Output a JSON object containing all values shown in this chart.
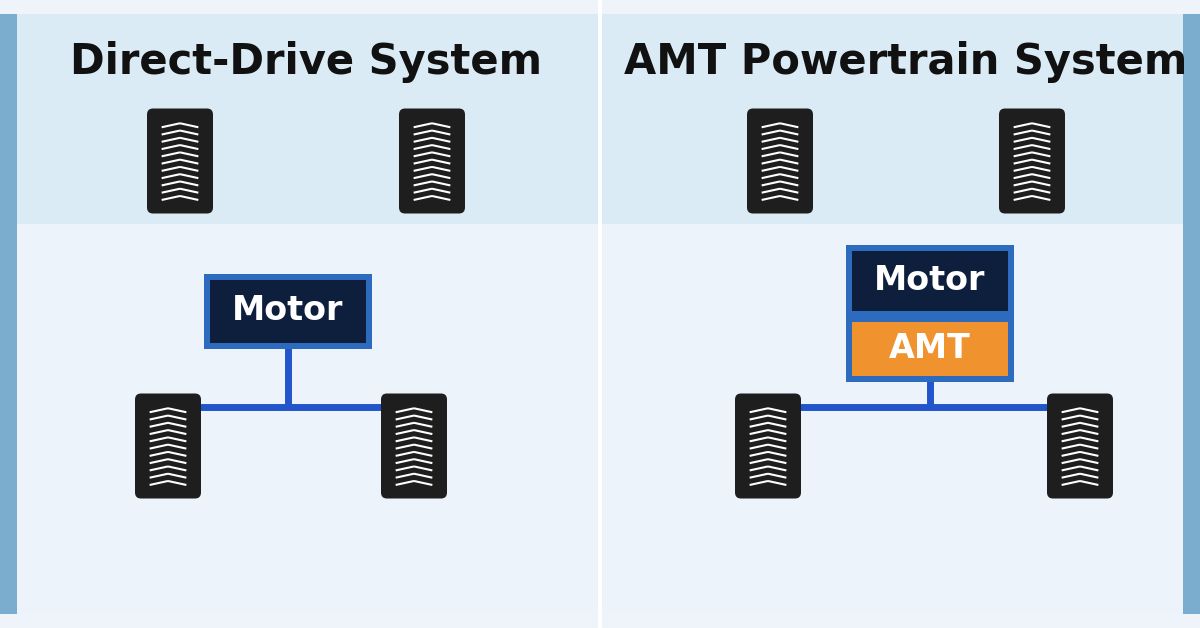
{
  "fig_width": 12.0,
  "fig_height": 6.28,
  "bg_color": "#eef4fa",
  "bg_color_top": "#c8dff0",
  "panel_bg": "#f0f6fc",
  "side_stripe_color": "#7aadd4",
  "divider_color": "#ffffff",
  "title_left": "Direct-Drive System",
  "title_right": "AMT Powertrain System",
  "title_fontsize": 30,
  "title_fontweight": "bold",
  "motor_box_color": "#0d1f3c",
  "motor_box_border_color": "#2d6bbf",
  "motor_text": "Motor",
  "motor_text_color": "#ffffff",
  "motor_text_fontsize": 24,
  "amt_box_color": "#f0922d",
  "amt_box_border_color": "#2d6bbf",
  "amt_text": "AMT",
  "amt_text_color": "#ffffff",
  "amt_text_fontsize": 24,
  "line_color": "#2255cc",
  "line_width": 5,
  "tire_color": "#1e1e1e",
  "tire_tread_color": "#ffffff",
  "text_color": "#111111"
}
